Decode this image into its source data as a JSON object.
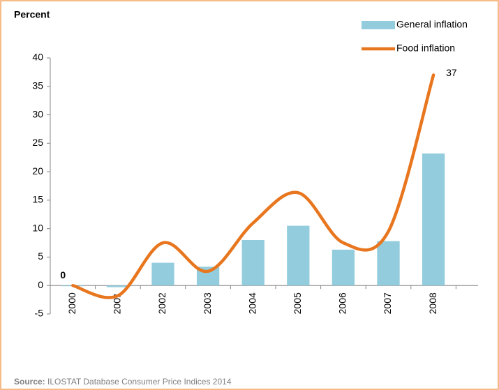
{
  "chart_data": {
    "type": "bar-line",
    "y_label": "Percent",
    "source_label": "Source:",
    "source": "ILOSTAT Database Consumer Price Indices 2014",
    "categories": [
      "2000",
      "2001",
      "2002",
      "2003",
      "2004",
      "2005",
      "2006",
      "2007",
      "2008"
    ],
    "series": [
      {
        "name": "General inflation",
        "type": "bar",
        "color": "#93cddd",
        "values": [
          0,
          -0.3,
          4,
          3.3,
          8,
          10.5,
          6.3,
          7.8,
          23.2
        ]
      },
      {
        "name": "Food inflation",
        "type": "line",
        "color": "#e8761e",
        "values": [
          0,
          -1.8,
          7.5,
          2.5,
          11,
          16.3,
          7.5,
          9.5,
          37
        ],
        "labeled_points": [
          0,
          8
        ]
      }
    ],
    "ylim": [
      -5,
      40
    ],
    "yticks": [
      -5,
      0,
      5,
      10,
      15,
      20,
      25,
      30,
      35,
      40
    ]
  }
}
